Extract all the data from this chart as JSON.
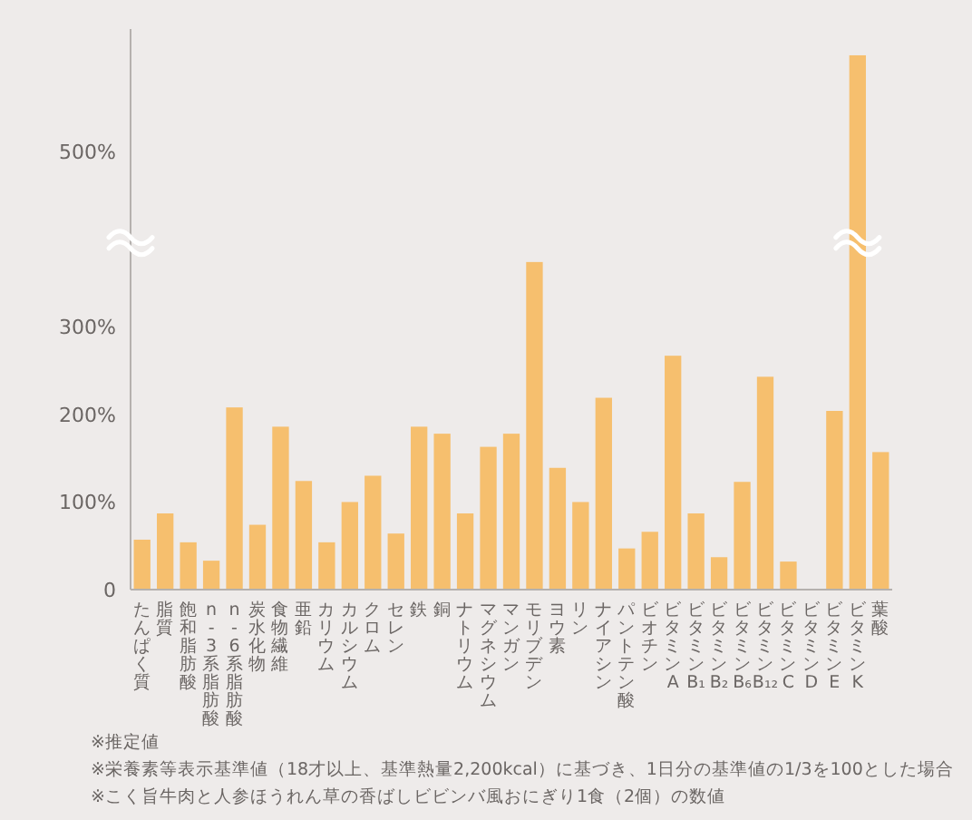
{
  "chart_data": {
    "type": "bar",
    "categories": [
      "たんぱく質",
      "脂質",
      "飽和脂肪酸",
      "n-3系脂肪酸",
      "n-6系脂肪酸",
      "炭水化物",
      "食物繊維",
      "亜鉛",
      "カリウム",
      "カルシウム",
      "クロム",
      "セレン",
      "鉄",
      "銅",
      "ナトリウム",
      "マグネシウム",
      "マンガン",
      "モリブデン",
      "ヨウ素",
      "リン",
      "ナイアシン",
      "パントテン酸",
      "ビオチン",
      "ビタミンA",
      "ビタミンB₁",
      "ビタミンB₂",
      "ビタミンB₆",
      "ビタミンB₁₂",
      "ビタミンC",
      "ビタミンD",
      "ビタミンE",
      "ビタミンK",
      "葉酸"
    ],
    "values": [
      57,
      87,
      54,
      33,
      208,
      74,
      186,
      124,
      54,
      100,
      130,
      64,
      186,
      178,
      87,
      163,
      178,
      374,
      139,
      100,
      219,
      47,
      66,
      267,
      87,
      37,
      123,
      243,
      32,
      0,
      204,
      610,
      157
    ],
    "color": "#f6bf6e",
    "ylim": [
      0,
      640
    ],
    "yticks": [
      {
        "value": 0,
        "label": "0"
      },
      {
        "value": 100,
        "label": "100%"
      },
      {
        "value": 200,
        "label": "200%"
      },
      {
        "value": 300,
        "label": "300%"
      },
      {
        "value": 500,
        "label": "500%"
      }
    ],
    "annotations": [
      "※推定値",
      "※栄養素等表示基準値（18才以上、基準熱量2,200kcal）に基づき、1日分の基準値の1/3を100とした場合",
      "※こく旨牛肉と人参ほうれん草の香ばしビビンバ風おにぎり1食（2個）の数値"
    ]
  }
}
